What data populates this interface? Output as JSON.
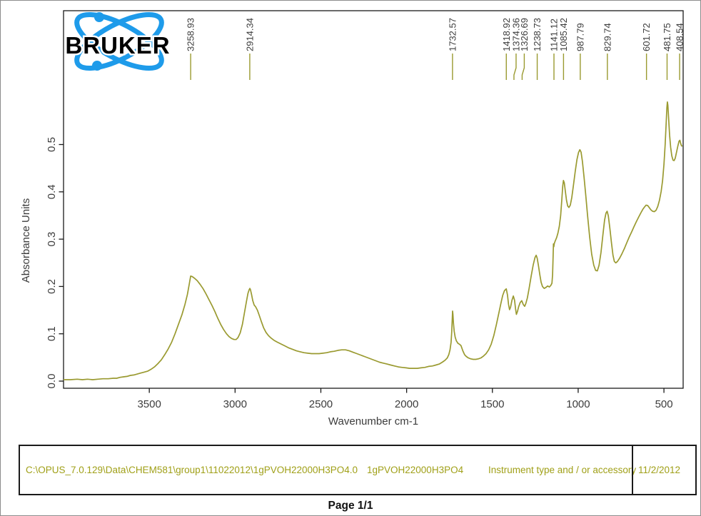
{
  "page": {
    "footer": "Page 1/1"
  },
  "logo": {
    "text": "BRUKER"
  },
  "colors": {
    "curve": "#9a9a30",
    "annotation_line": "#9a9a30",
    "peak_label_text": "#3c3c3c",
    "axis_text": "#3c3c3c",
    "frame": "#1a1a1a",
    "info_text": "#a0a018",
    "logo_blue": "#1e9bea",
    "logo_black": "#000000"
  },
  "info_box": {
    "file_path": "C:\\OPUS_7.0.129\\Data\\CHEM581\\group1\\11022012\\1gPVOH22000H3PO4.0",
    "sample_name": "1gPVOH22000H3PO4",
    "instrument_label": "Instrument type and / or accessory",
    "date": "11/2/2012"
  },
  "chart_data": {
    "type": "line",
    "title": "",
    "xlabel": "Wavenumber cm-1",
    "ylabel": "Absorbance Units",
    "x_ticks": [
      "3500",
      "3000",
      "2500",
      "2000",
      "1500",
      "1000",
      "500"
    ],
    "y_ticks": [
      "0.0",
      "0.1",
      "0.2",
      "0.3",
      "0.4",
      "0.5"
    ],
    "xlim": [
      4000,
      388
    ],
    "ylim": [
      0.0,
      0.6
    ],
    "x_axis_reversed": true,
    "grid": false,
    "legend": "none",
    "peaks": [
      {
        "label": "3258.93"
      },
      {
        "label": "2914.34"
      },
      {
        "label": "1732.57"
      },
      {
        "label": "1418.92"
      },
      {
        "label": "1374.36",
        "dx": 3
      },
      {
        "label": "1326.69",
        "dx": 3
      },
      {
        "label": "1238.73"
      },
      {
        "label": "1141.12"
      },
      {
        "label": "1085.42"
      },
      {
        "label": "987.79"
      },
      {
        "label": "829.74"
      },
      {
        "label": "601.72"
      },
      {
        "label": "481.75"
      },
      {
        "label": "408.54"
      }
    ],
    "series": [
      {
        "name": "1gPVOH22000H3PO4",
        "points": [
          [
            4000,
            0.003
          ],
          [
            3960,
            0.003
          ],
          [
            3920,
            0.004
          ],
          [
            3890,
            0.003
          ],
          [
            3860,
            0.004
          ],
          [
            3830,
            0.003
          ],
          [
            3800,
            0.004
          ],
          [
            3770,
            0.005
          ],
          [
            3740,
            0.005
          ],
          [
            3710,
            0.006
          ],
          [
            3690,
            0.006
          ],
          [
            3670,
            0.008
          ],
          [
            3650,
            0.009
          ],
          [
            3630,
            0.01
          ],
          [
            3610,
            0.012
          ],
          [
            3590,
            0.013
          ],
          [
            3570,
            0.015
          ],
          [
            3550,
            0.017
          ],
          [
            3530,
            0.019
          ],
          [
            3510,
            0.021
          ],
          [
            3490,
            0.025
          ],
          [
            3470,
            0.03
          ],
          [
            3450,
            0.037
          ],
          [
            3430,
            0.045
          ],
          [
            3410,
            0.056
          ],
          [
            3390,
            0.068
          ],
          [
            3370,
            0.082
          ],
          [
            3350,
            0.1
          ],
          [
            3330,
            0.12
          ],
          [
            3310,
            0.14
          ],
          [
            3292,
            0.162
          ],
          [
            3278,
            0.183
          ],
          [
            3268,
            0.203
          ],
          [
            3259,
            0.222
          ],
          [
            3250,
            0.221
          ],
          [
            3235,
            0.217
          ],
          [
            3220,
            0.212
          ],
          [
            3203,
            0.204
          ],
          [
            3186,
            0.195
          ],
          [
            3169,
            0.184
          ],
          [
            3152,
            0.172
          ],
          [
            3135,
            0.16
          ],
          [
            3118,
            0.147
          ],
          [
            3101,
            0.133
          ],
          [
            3084,
            0.12
          ],
          [
            3067,
            0.109
          ],
          [
            3050,
            0.1
          ],
          [
            3035,
            0.094
          ],
          [
            3020,
            0.09
          ],
          [
            3006,
            0.088
          ],
          [
            2994,
            0.088
          ],
          [
            2983,
            0.092
          ],
          [
            2970,
            0.102
          ],
          [
            2957,
            0.12
          ],
          [
            2945,
            0.145
          ],
          [
            2934,
            0.168
          ],
          [
            2925,
            0.185
          ],
          [
            2918,
            0.193
          ],
          [
            2914,
            0.196
          ],
          [
            2910,
            0.193
          ],
          [
            2904,
            0.183
          ],
          [
            2897,
            0.17
          ],
          [
            2889,
            0.161
          ],
          [
            2880,
            0.157
          ],
          [
            2870,
            0.15
          ],
          [
            2858,
            0.138
          ],
          [
            2846,
            0.125
          ],
          [
            2834,
            0.113
          ],
          [
            2820,
            0.103
          ],
          [
            2805,
            0.096
          ],
          [
            2790,
            0.091
          ],
          [
            2772,
            0.086
          ],
          [
            2752,
            0.082
          ],
          [
            2730,
            0.078
          ],
          [
            2708,
            0.074
          ],
          [
            2686,
            0.07
          ],
          [
            2664,
            0.067
          ],
          [
            2642,
            0.064
          ],
          [
            2620,
            0.062
          ],
          [
            2598,
            0.06
          ],
          [
            2576,
            0.059
          ],
          [
            2554,
            0.058
          ],
          [
            2532,
            0.058
          ],
          [
            2510,
            0.058
          ],
          [
            2488,
            0.059
          ],
          [
            2466,
            0.06
          ],
          [
            2444,
            0.062
          ],
          [
            2422,
            0.063
          ],
          [
            2400,
            0.065
          ],
          [
            2378,
            0.066
          ],
          [
            2356,
            0.066
          ],
          [
            2334,
            0.064
          ],
          [
            2312,
            0.061
          ],
          [
            2290,
            0.058
          ],
          [
            2268,
            0.055
          ],
          [
            2246,
            0.052
          ],
          [
            2224,
            0.049
          ],
          [
            2202,
            0.046
          ],
          [
            2180,
            0.043
          ],
          [
            2158,
            0.04
          ],
          [
            2136,
            0.038
          ],
          [
            2114,
            0.036
          ],
          [
            2092,
            0.034
          ],
          [
            2070,
            0.032
          ],
          [
            2048,
            0.03
          ],
          [
            2026,
            0.029
          ],
          [
            2004,
            0.028
          ],
          [
            1982,
            0.027
          ],
          [
            1960,
            0.027
          ],
          [
            1938,
            0.027
          ],
          [
            1916,
            0.028
          ],
          [
            1894,
            0.029
          ],
          [
            1872,
            0.031
          ],
          [
            1850,
            0.032
          ],
          [
            1830,
            0.034
          ],
          [
            1810,
            0.036
          ],
          [
            1792,
            0.04
          ],
          [
            1776,
            0.044
          ],
          [
            1763,
            0.049
          ],
          [
            1754,
            0.056
          ],
          [
            1747,
            0.066
          ],
          [
            1741,
            0.082
          ],
          [
            1737,
            0.104
          ],
          [
            1734,
            0.13
          ],
          [
            1732,
            0.148
          ],
          [
            1730,
            0.141
          ],
          [
            1727,
            0.123
          ],
          [
            1723,
            0.106
          ],
          [
            1717,
            0.093
          ],
          [
            1710,
            0.085
          ],
          [
            1701,
            0.08
          ],
          [
            1692,
            0.078
          ],
          [
            1683,
            0.075
          ],
          [
            1672,
            0.064
          ],
          [
            1662,
            0.056
          ],
          [
            1652,
            0.052
          ],
          [
            1640,
            0.049
          ],
          [
            1626,
            0.047
          ],
          [
            1612,
            0.046
          ],
          [
            1597,
            0.046
          ],
          [
            1582,
            0.047
          ],
          [
            1567,
            0.049
          ],
          [
            1552,
            0.053
          ],
          [
            1537,
            0.058
          ],
          [
            1522,
            0.066
          ],
          [
            1507,
            0.078
          ],
          [
            1492,
            0.096
          ],
          [
            1477,
            0.119
          ],
          [
            1463,
            0.143
          ],
          [
            1450,
            0.165
          ],
          [
            1440,
            0.181
          ],
          [
            1430,
            0.191
          ],
          [
            1419,
            0.195
          ],
          [
            1412,
            0.182
          ],
          [
            1406,
            0.162
          ],
          [
            1400,
            0.151
          ],
          [
            1394,
            0.156
          ],
          [
            1386,
            0.171
          ],
          [
            1378,
            0.18
          ],
          [
            1371,
            0.171
          ],
          [
            1365,
            0.153
          ],
          [
            1360,
            0.141
          ],
          [
            1354,
            0.147
          ],
          [
            1347,
            0.157
          ],
          [
            1338,
            0.166
          ],
          [
            1329,
            0.17
          ],
          [
            1320,
            0.162
          ],
          [
            1312,
            0.158
          ],
          [
            1305,
            0.164
          ],
          [
            1296,
            0.176
          ],
          [
            1286,
            0.196
          ],
          [
            1274,
            0.222
          ],
          [
            1262,
            0.246
          ],
          [
            1252,
            0.261
          ],
          [
            1245,
            0.266
          ],
          [
            1239,
            0.26
          ],
          [
            1232,
            0.245
          ],
          [
            1224,
            0.226
          ],
          [
            1216,
            0.209
          ],
          [
            1208,
            0.2
          ],
          [
            1198,
            0.196
          ],
          [
            1188,
            0.198
          ],
          [
            1178,
            0.201
          ],
          [
            1168,
            0.199
          ],
          [
            1160,
            0.202
          ],
          [
            1153,
            0.207
          ],
          [
            1149,
            0.225
          ],
          [
            1146,
            0.262
          ],
          [
            1144,
            0.29
          ],
          [
            1142,
            0.284
          ],
          [
            1139,
            0.291
          ],
          [
            1134,
            0.296
          ],
          [
            1126,
            0.303
          ],
          [
            1118,
            0.313
          ],
          [
            1110,
            0.327
          ],
          [
            1102,
            0.35
          ],
          [
            1095,
            0.385
          ],
          [
            1090,
            0.412
          ],
          [
            1086,
            0.424
          ],
          [
            1081,
            0.419
          ],
          [
            1075,
            0.402
          ],
          [
            1068,
            0.382
          ],
          [
            1061,
            0.37
          ],
          [
            1054,
            0.367
          ],
          [
            1046,
            0.372
          ],
          [
            1037,
            0.388
          ],
          [
            1027,
            0.415
          ],
          [
            1017,
            0.443
          ],
          [
            1007,
            0.468
          ],
          [
            998,
            0.483
          ],
          [
            990,
            0.489
          ],
          [
            983,
            0.484
          ],
          [
            975,
            0.464
          ],
          [
            966,
            0.432
          ],
          [
            956,
            0.394
          ],
          [
            945,
            0.35
          ],
          [
            933,
            0.305
          ],
          [
            921,
            0.268
          ],
          [
            909,
            0.245
          ],
          [
            898,
            0.234
          ],
          [
            888,
            0.233
          ],
          [
            878,
            0.245
          ],
          [
            867,
            0.272
          ],
          [
            856,
            0.308
          ],
          [
            846,
            0.34
          ],
          [
            838,
            0.355
          ],
          [
            831,
            0.359
          ],
          [
            824,
            0.349
          ],
          [
            815,
            0.322
          ],
          [
            806,
            0.292
          ],
          [
            797,
            0.266
          ],
          [
            789,
            0.253
          ],
          [
            781,
            0.25
          ],
          [
            771,
            0.253
          ],
          [
            758,
            0.26
          ],
          [
            745,
            0.269
          ],
          [
            731,
            0.28
          ],
          [
            717,
            0.292
          ],
          [
            703,
            0.304
          ],
          [
            689,
            0.315
          ],
          [
            675,
            0.326
          ],
          [
            661,
            0.337
          ],
          [
            647,
            0.347
          ],
          [
            634,
            0.356
          ],
          [
            623,
            0.363
          ],
          [
            613,
            0.368
          ],
          [
            604,
            0.372
          ],
          [
            595,
            0.371
          ],
          [
            586,
            0.367
          ],
          [
            576,
            0.362
          ],
          [
            566,
            0.359
          ],
          [
            556,
            0.358
          ],
          [
            546,
            0.361
          ],
          [
            536,
            0.369
          ],
          [
            526,
            0.382
          ],
          [
            516,
            0.401
          ],
          [
            508,
            0.424
          ],
          [
            500,
            0.458
          ],
          [
            493,
            0.5
          ],
          [
            487,
            0.545
          ],
          [
            483,
            0.578
          ],
          [
            480,
            0.59
          ],
          [
            477,
            0.583
          ],
          [
            473,
            0.557
          ],
          [
            467,
            0.52
          ],
          [
            461,
            0.494
          ],
          [
            454,
            0.476
          ],
          [
            447,
            0.467
          ],
          [
            441,
            0.466
          ],
          [
            434,
            0.471
          ],
          [
            427,
            0.483
          ],
          [
            419,
            0.497
          ],
          [
            412,
            0.507
          ],
          [
            407,
            0.509
          ],
          [
            402,
            0.502
          ],
          [
            397,
            0.497
          ],
          [
            392,
            0.497
          ]
        ]
      }
    ]
  }
}
